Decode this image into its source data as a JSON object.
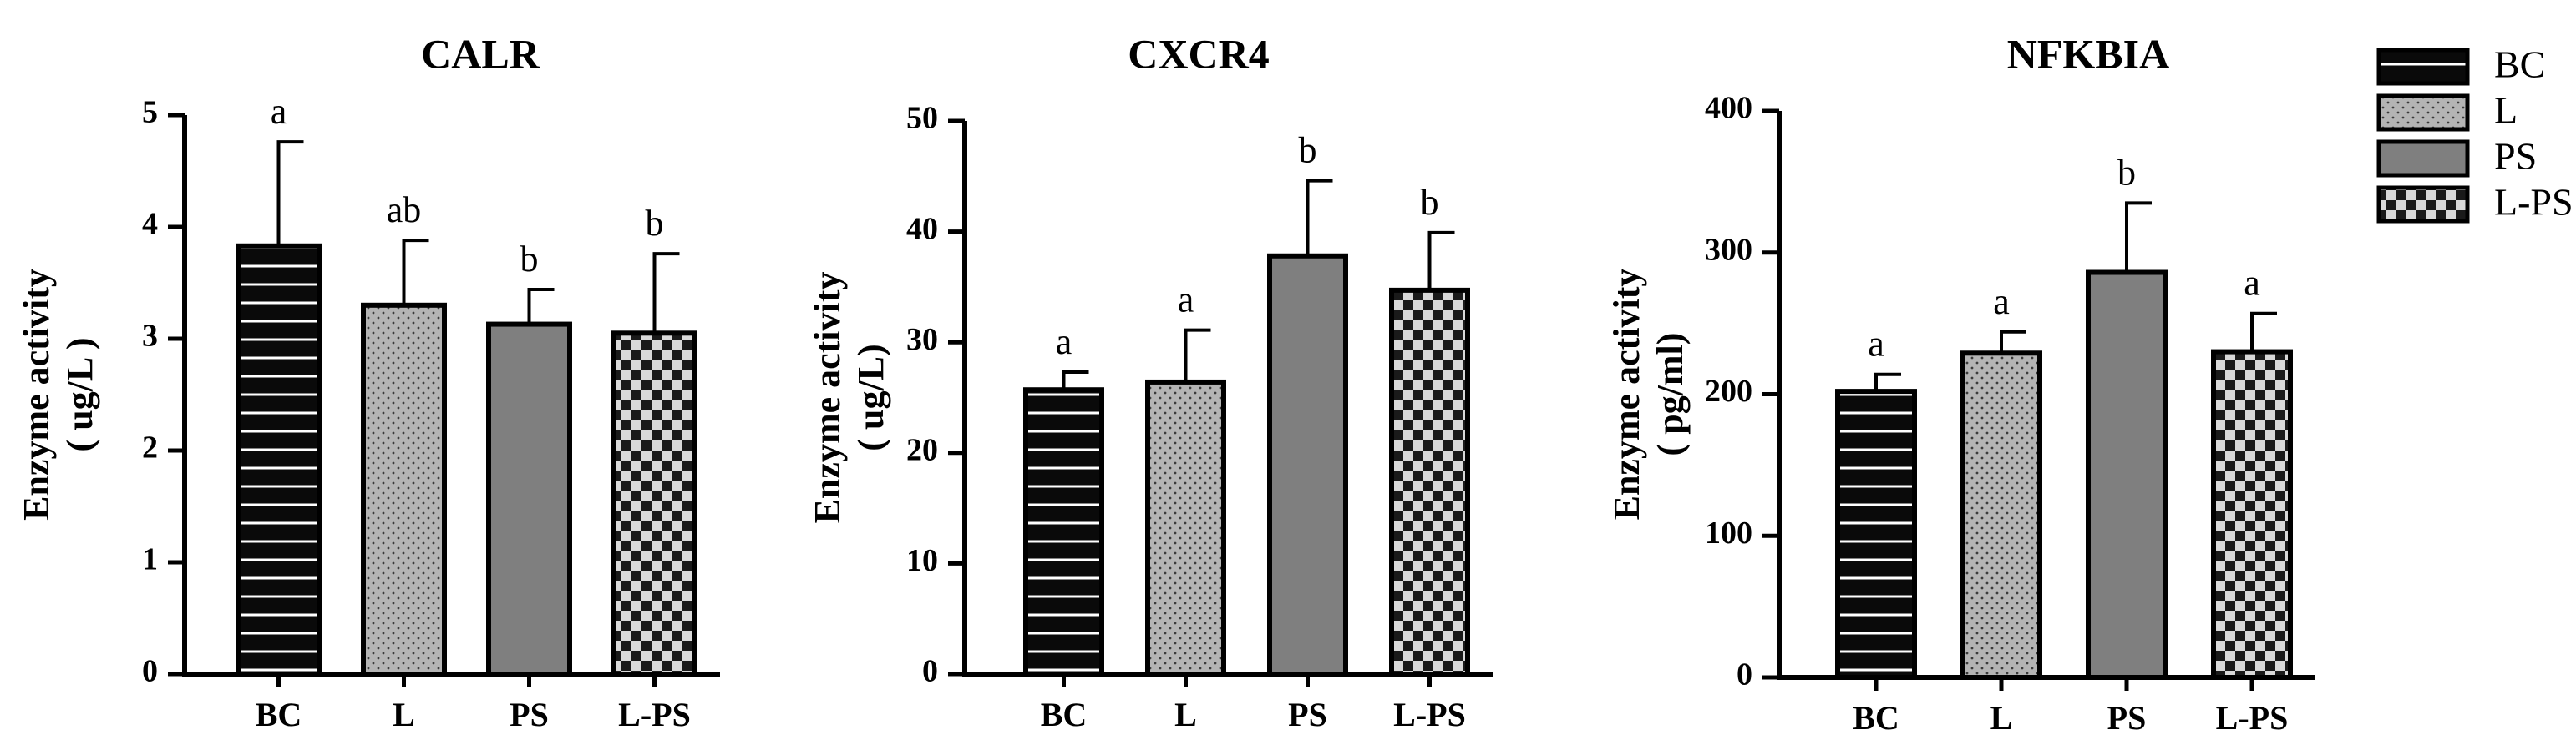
{
  "chart_data": [
    {
      "type": "bar",
      "title": "CALR",
      "ylabel": "Enzyme activity",
      "ylabel_unit": "( ug/L )",
      "categories": [
        "BC",
        "L",
        "PS",
        "L-PS"
      ],
      "values": [
        3.83,
        3.3,
        3.13,
        3.05
      ],
      "errors": [
        0.93,
        0.58,
        0.31,
        0.71
      ],
      "significance": [
        "a",
        "ab",
        "b",
        "b"
      ],
      "ylim": [
        0,
        5
      ],
      "yticks": [
        0,
        1,
        2,
        3,
        4,
        5
      ]
    },
    {
      "type": "bar",
      "title": "CXCR4",
      "ylabel": "Enzyme activity",
      "ylabel_unit": "( ug/L)",
      "categories": [
        "BC",
        "L",
        "PS",
        "L-PS"
      ],
      "values": [
        25.7,
        26.4,
        37.8,
        34.7
      ],
      "errors": [
        1.6,
        4.7,
        6.8,
        5.2
      ],
      "significance": [
        "a",
        "a",
        "b",
        "b"
      ],
      "ylim": [
        0,
        50
      ],
      "yticks": [
        0,
        10,
        20,
        30,
        40,
        50
      ]
    },
    {
      "type": "bar",
      "title": "NFKBIA",
      "ylabel": "Enzyme activity",
      "ylabel_unit": "( pg/ml)",
      "categories": [
        "BC",
        "L",
        "PS",
        "L-PS"
      ],
      "values": [
        202,
        229,
        286,
        230
      ],
      "errors": [
        12,
        15,
        49,
        27
      ],
      "significance": [
        "a",
        "a",
        "b",
        "a"
      ],
      "ylim": [
        0,
        400
      ],
      "yticks": [
        0,
        100,
        200,
        300,
        400
      ]
    }
  ],
  "legend": {
    "placement": "top-right",
    "entries": [
      {
        "label": "BC",
        "pattern": "horizontal-lines"
      },
      {
        "label": "L",
        "pattern": "dots"
      },
      {
        "label": "PS",
        "pattern": "solid-gray"
      },
      {
        "label": "L-PS",
        "pattern": "checkerboard"
      }
    ]
  },
  "colors": {
    "bar_dark": "#0a0a0a",
    "bar_light_gray": "#b4b4b4",
    "bar_gray": "#7f7f7f",
    "check_light": "#d9d9d9",
    "axis": "#000000"
  }
}
